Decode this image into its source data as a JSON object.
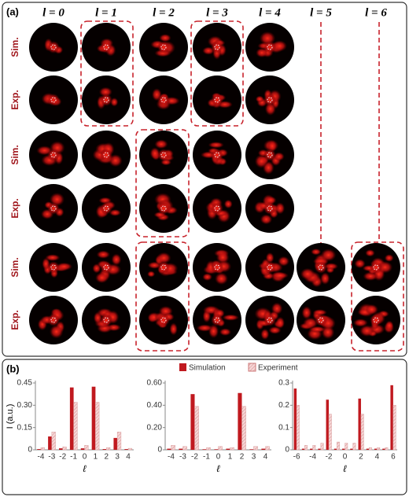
{
  "panel_a": {
    "label": "(a)",
    "column_headers": [
      "l = 0",
      "l = 1",
      "l = 2",
      "l = 3",
      "l = 4",
      "l = 5",
      "l = 6"
    ],
    "row_labels": [
      "Sim.",
      "Exp.",
      "Sim.",
      "Exp.",
      "Sim.",
      "Exp."
    ]
  },
  "panel_b": {
    "label": "(b)"
  },
  "chart_data": [
    {
      "type": "bar",
      "y_label": "I (a.u.)",
      "x_label": "ℓ",
      "categories": [
        "-4",
        "-3",
        "-2",
        "-1",
        "0",
        "1",
        "2",
        "3",
        "4"
      ],
      "series": [
        {
          "name": "Simulation",
          "color": "#c0191f",
          "values": [
            0.005,
            0.09,
            0.01,
            0.42,
            0.01,
            0.425,
            0.005,
            0.08,
            0.005
          ]
        },
        {
          "name": "Experiment",
          "color": "#f2c4c4",
          "values": [
            0.015,
            0.12,
            0.02,
            0.32,
            0.03,
            0.32,
            0.015,
            0.12,
            0.01
          ]
        }
      ],
      "ylim": [
        0,
        0.45
      ],
      "yticks": [
        0,
        0.15,
        {
          "value": 0.3,
          "label": "0.30"
        },
        0.45
      ]
    },
    {
      "type": "bar",
      "x_label": "ℓ",
      "categories": [
        "-4",
        "-3",
        "-2",
        "-1",
        "0",
        "1",
        "2",
        "3",
        "4"
      ],
      "series": [
        {
          "name": "Simulation",
          "color": "#c0191f",
          "values": [
            0.01,
            0.01,
            0.5,
            0.005,
            0.005,
            0.01,
            0.51,
            0.005,
            0.01
          ]
        },
        {
          "name": "Experiment",
          "color": "#f2c4c4",
          "values": [
            0.04,
            0.03,
            0.39,
            0.02,
            0.03,
            0.02,
            0.39,
            0.03,
            0.03
          ]
        }
      ],
      "ylim": [
        0,
        0.6
      ],
      "yticks": [
        0,
        {
          "value": 0.2,
          "label": "0.20"
        },
        {
          "value": 0.4,
          "label": "0.40"
        },
        {
          "value": 0.6,
          "label": "0.60"
        }
      ]
    },
    {
      "type": "bar",
      "x_label": "ℓ",
      "categories": [
        "-6",
        null,
        "-4",
        null,
        "-2",
        null,
        "0",
        null,
        "2",
        null,
        "4",
        null,
        "6"
      ],
      "series": [
        {
          "name": "Simulation",
          "color": "#c0191f",
          "values": [
            0.275,
            0.005,
            0.005,
            0.005,
            0.225,
            0.005,
            0.005,
            0.005,
            0.23,
            0.005,
            0.005,
            0.005,
            0.29
          ]
        },
        {
          "name": "Experiment",
          "color": "#f2c4c4",
          "values": [
            0.2,
            0.02,
            0.02,
            0.03,
            0.16,
            0.035,
            0.03,
            0.03,
            0.16,
            0.01,
            0.01,
            0.01,
            0.2
          ]
        }
      ],
      "ylim": [
        0,
        0.3
      ],
      "yticks": [
        0,
        0.1,
        0.2,
        0.3
      ]
    }
  ]
}
